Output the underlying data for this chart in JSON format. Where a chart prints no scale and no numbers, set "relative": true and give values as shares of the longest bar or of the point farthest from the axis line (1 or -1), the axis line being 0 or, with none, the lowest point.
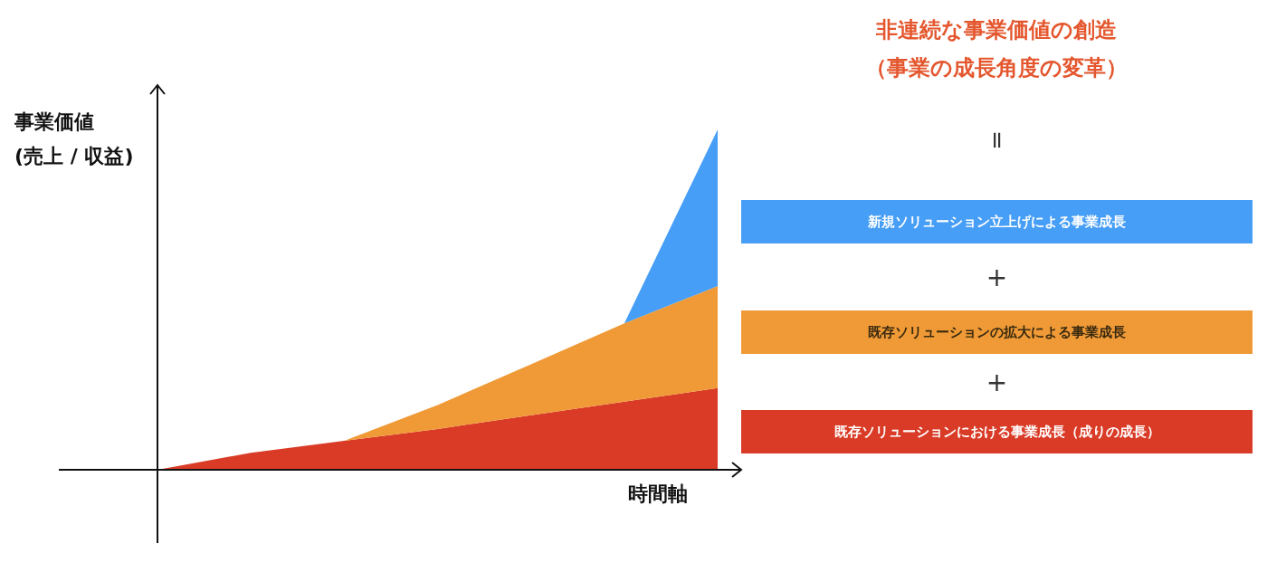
{
  "chart_data": {
    "type": "area",
    "title": "非連続な事業価値の創造",
    "subtitle": "（事業の成長角度の変革）",
    "ylabel": "事業価値\n(売上 / 収益)",
    "xlabel": "時間軸",
    "relative": true,
    "stacked": true,
    "legend": "right",
    "annotations": [
      "=",
      "+",
      "+"
    ],
    "categories": [
      null,
      null,
      null,
      null,
      null,
      null,
      null
    ],
    "series": [
      {
        "name": "既存ソリューションにおける事業成長（成りの成長）",
        "color": "#d93b26",
        "values": [
          0,
          0.05,
          0.085,
          0.12,
          0.16,
          0.2,
          0.24
        ]
      },
      {
        "name": "既存ソリューションの拡大による事業成長",
        "color": "#ef9a36",
        "values": [
          0,
          0,
          0,
          0.07,
          0.15,
          0.23,
          0.3
        ]
      },
      {
        "name": "新規ソリューション立上げによる事業成長",
        "color": "#469ef6",
        "values": [
          0,
          0,
          0,
          0,
          0,
          0,
          0.46
        ]
      }
    ]
  }
}
